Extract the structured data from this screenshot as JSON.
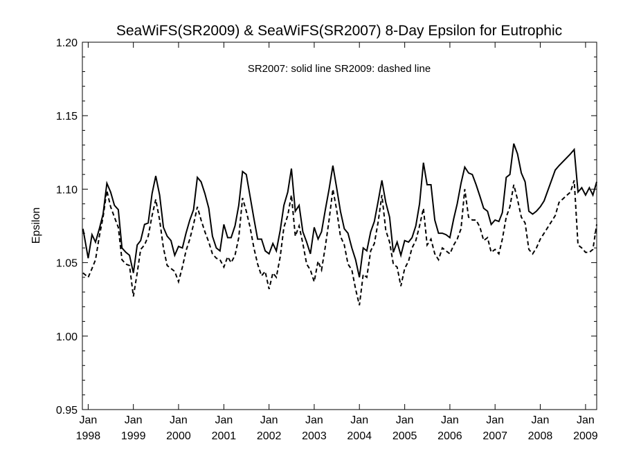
{
  "chart_data": {
    "type": "line",
    "title": "SeaWiFS(SR2009) & SeaWiFS(SR2007) 8-Day Epsilon for Eutrophic",
    "xlabel": "",
    "ylabel": "Epsilon",
    "annotation": "SR2007: solid line   SR2009: dashed line",
    "xlim": [
      "1997-11-15",
      "2009-04-01"
    ],
    "ylim": [
      0.95,
      1.2
    ],
    "grid": false,
    "y_ticks": [
      0.95,
      1.0,
      1.05,
      1.1,
      1.15,
      1.2
    ],
    "y_tick_labels": [
      "0.95",
      "1.00",
      "1.05",
      "1.10",
      "1.15",
      "1.20"
    ],
    "x_ticks": [
      "1998-01-01",
      "1999-01-01",
      "2000-01-01",
      "2001-01-01",
      "2002-01-01",
      "2003-01-01",
      "2004-01-01",
      "2005-01-01",
      "2006-01-01",
      "2007-01-01",
      "2008-01-01",
      "2009-01-01"
    ],
    "x_tick_month_label": "Jan",
    "x_tick_year_labels": [
      "1998",
      "1999",
      "2000",
      "2001",
      "2002",
      "2003",
      "2004",
      "2005",
      "2006",
      "2007",
      "2008",
      "2009"
    ],
    "series": [
      {
        "style": "solid",
        "x": [
          "1997-11-20",
          "1998-01-01",
          "1998-02-01",
          "1998-03-01",
          "1998-04-01",
          "1998-05-01",
          "1998-06-01",
          "1998-07-01",
          "1998-08-01",
          "1998-09-01",
          "1998-10-01",
          "1998-11-01",
          "1998-12-01",
          "1999-01-01",
          "1999-02-01",
          "1999-03-01",
          "1999-04-01",
          "1999-05-01",
          "1999-06-01",
          "1999-07-01",
          "1999-08-01",
          "1999-09-01",
          "1999-10-01",
          "1999-11-01",
          "1999-12-01",
          "2000-01-01",
          "2000-02-01",
          "2000-03-01",
          "2000-04-01",
          "2000-05-01",
          "2000-06-01",
          "2000-07-01",
          "2000-08-01",
          "2000-09-01",
          "2000-10-01",
          "2000-11-01",
          "2000-12-01",
          "2001-01-01",
          "2001-02-01",
          "2001-03-01",
          "2001-04-01",
          "2001-05-01",
          "2001-06-01",
          "2001-07-01",
          "2001-08-01",
          "2001-09-01",
          "2001-10-01",
          "2001-11-01",
          "2001-12-01",
          "2002-01-01",
          "2002-02-01",
          "2002-03-01",
          "2002-04-01",
          "2002-05-01",
          "2002-06-01",
          "2002-07-01",
          "2002-08-01",
          "2002-09-01",
          "2002-10-01",
          "2002-11-01",
          "2002-12-01",
          "2003-01-01",
          "2003-02-01",
          "2003-03-01",
          "2003-04-01",
          "2003-05-01",
          "2003-06-01",
          "2003-07-01",
          "2003-08-01",
          "2003-09-01",
          "2003-10-01",
          "2003-11-01",
          "2003-12-01",
          "2004-01-01",
          "2004-02-01",
          "2004-03-01",
          "2004-04-01",
          "2004-05-01",
          "2004-06-01",
          "2004-07-01",
          "2004-08-01",
          "2004-09-01",
          "2004-10-01",
          "2004-11-01",
          "2004-12-01",
          "2005-01-01",
          "2005-02-01",
          "2005-03-01",
          "2005-04-01",
          "2005-05-01",
          "2005-06-01",
          "2005-07-01",
          "2005-08-01",
          "2005-09-01",
          "2005-10-01",
          "2005-11-01",
          "2005-12-01",
          "2006-01-01",
          "2006-02-01",
          "2006-03-01",
          "2006-04-01",
          "2006-05-01",
          "2006-06-01",
          "2006-07-01",
          "2006-08-01",
          "2006-09-01",
          "2006-10-01",
          "2006-11-01",
          "2006-12-01",
          "2007-01-01",
          "2007-02-01",
          "2007-03-01",
          "2007-04-01",
          "2007-05-01",
          "2007-06-01",
          "2007-07-01",
          "2007-08-01",
          "2007-09-01",
          "2007-10-01",
          "2007-11-01",
          "2007-12-01",
          "2008-01-01",
          "2008-02-01",
          "2008-05-01",
          "2008-06-01",
          "2008-09-01",
          "2008-10-01",
          "2008-11-01",
          "2008-12-01",
          "2009-01-01",
          "2009-02-01",
          "2009-03-01",
          "2009-04-01"
        ],
        "y": [
          1.073,
          1.053,
          1.069,
          1.064,
          1.073,
          1.083,
          1.104,
          1.098,
          1.089,
          1.086,
          1.06,
          1.057,
          1.055,
          1.043,
          1.062,
          1.065,
          1.076,
          1.077,
          1.097,
          1.109,
          1.096,
          1.074,
          1.068,
          1.065,
          1.055,
          1.061,
          1.06,
          1.07,
          1.079,
          1.086,
          1.108,
          1.105,
          1.097,
          1.087,
          1.068,
          1.06,
          1.058,
          1.076,
          1.067,
          1.067,
          1.075,
          1.089,
          1.112,
          1.11,
          1.095,
          1.08,
          1.066,
          1.066,
          1.058,
          1.056,
          1.063,
          1.058,
          1.072,
          1.089,
          1.098,
          1.114,
          1.085,
          1.089,
          1.071,
          1.064,
          1.056,
          1.074,
          1.066,
          1.071,
          1.086,
          1.1,
          1.116,
          1.101,
          1.085,
          1.073,
          1.07,
          1.06,
          1.052,
          1.04,
          1.06,
          1.058,
          1.071,
          1.078,
          1.092,
          1.106,
          1.091,
          1.081,
          1.057,
          1.064,
          1.055,
          1.065,
          1.064,
          1.067,
          1.075,
          1.09,
          1.118,
          1.103,
          1.103,
          1.079,
          1.07,
          1.07,
          1.069,
          1.067,
          1.08,
          1.09,
          1.104,
          1.115,
          1.111,
          1.11,
          1.103,
          1.095,
          1.087,
          1.085,
          1.076,
          1.079,
          1.078,
          1.084,
          1.108,
          1.11,
          1.131,
          1.124,
          1.111,
          1.105,
          1.085,
          1.083,
          1.085,
          1.088,
          1.092,
          1.113,
          1.116,
          1.124,
          1.127,
          1.098,
          1.101,
          1.096,
          1.101,
          1.096,
          1.105
        ]
      },
      {
        "style": "dashed",
        "x": [
          "1997-11-20",
          "1998-01-01",
          "1998-02-01",
          "1998-03-01",
          "1998-04-01",
          "1998-05-01",
          "1998-06-01",
          "1998-07-01",
          "1998-08-01",
          "1998-09-01",
          "1998-10-01",
          "1998-11-01",
          "1998-12-01",
          "1999-01-01",
          "1999-02-01",
          "1999-03-01",
          "1999-04-01",
          "1999-05-01",
          "1999-06-01",
          "1999-07-01",
          "1999-08-01",
          "1999-09-01",
          "1999-10-01",
          "1999-11-01",
          "1999-12-01",
          "2000-01-01",
          "2000-02-01",
          "2000-03-01",
          "2000-04-01",
          "2000-05-01",
          "2000-06-01",
          "2000-07-01",
          "2000-08-01",
          "2000-09-01",
          "2000-10-01",
          "2000-11-01",
          "2000-12-01",
          "2001-01-01",
          "2001-02-01",
          "2001-03-01",
          "2001-04-01",
          "2001-05-01",
          "2001-06-01",
          "2001-07-01",
          "2001-08-01",
          "2001-09-01",
          "2001-10-01",
          "2001-11-01",
          "2001-12-01",
          "2002-01-01",
          "2002-02-01",
          "2002-03-01",
          "2002-04-01",
          "2002-05-01",
          "2002-06-01",
          "2002-07-01",
          "2002-08-01",
          "2002-09-01",
          "2002-10-01",
          "2002-11-01",
          "2002-12-01",
          "2003-01-01",
          "2003-02-01",
          "2003-03-01",
          "2003-04-01",
          "2003-05-01",
          "2003-06-01",
          "2003-07-01",
          "2003-08-01",
          "2003-09-01",
          "2003-10-01",
          "2003-11-01",
          "2003-12-01",
          "2004-01-01",
          "2004-02-01",
          "2004-03-01",
          "2004-04-01",
          "2004-05-01",
          "2004-06-01",
          "2004-07-01",
          "2004-08-01",
          "2004-09-01",
          "2004-10-01",
          "2004-11-01",
          "2004-12-01",
          "2005-01-01",
          "2005-02-01",
          "2005-03-01",
          "2005-04-01",
          "2005-05-01",
          "2005-06-01",
          "2005-07-01",
          "2005-08-01",
          "2005-09-01",
          "2005-10-01",
          "2005-11-01",
          "2005-12-01",
          "2006-01-01",
          "2006-02-01",
          "2006-03-01",
          "2006-04-01",
          "2006-05-01",
          "2006-06-01",
          "2006-07-01",
          "2006-08-01",
          "2006-09-01",
          "2006-10-01",
          "2006-11-01",
          "2006-12-01",
          "2007-01-01",
          "2007-02-01",
          "2007-03-01",
          "2007-04-01",
          "2007-05-01",
          "2007-06-01",
          "2007-07-01",
          "2007-08-01",
          "2007-09-01",
          "2007-10-01",
          "2007-11-01",
          "2007-12-01",
          "2008-01-01",
          "2008-02-01",
          "2008-05-01",
          "2008-06-01",
          "2008-09-01",
          "2008-10-01",
          "2008-11-01",
          "2008-12-01",
          "2009-01-01",
          "2009-02-01",
          "2009-03-01",
          "2009-04-01"
        ],
        "y": [
          1.043,
          1.04,
          1.046,
          1.052,
          1.068,
          1.081,
          1.099,
          1.088,
          1.081,
          1.074,
          1.052,
          1.049,
          1.048,
          1.027,
          1.043,
          1.059,
          1.062,
          1.068,
          1.082,
          1.093,
          1.079,
          1.06,
          1.048,
          1.046,
          1.044,
          1.037,
          1.047,
          1.058,
          1.066,
          1.076,
          1.088,
          1.079,
          1.071,
          1.064,
          1.056,
          1.053,
          1.052,
          1.047,
          1.054,
          1.05,
          1.055,
          1.067,
          1.094,
          1.085,
          1.074,
          1.06,
          1.049,
          1.041,
          1.044,
          1.032,
          1.043,
          1.04,
          1.054,
          1.074,
          1.082,
          1.096,
          1.068,
          1.075,
          1.063,
          1.049,
          1.045,
          1.037,
          1.051,
          1.045,
          1.061,
          1.079,
          1.1,
          1.086,
          1.068,
          1.062,
          1.049,
          1.045,
          1.032,
          1.021,
          1.042,
          1.04,
          1.058,
          1.063,
          1.078,
          1.096,
          1.072,
          1.064,
          1.049,
          1.047,
          1.034,
          1.046,
          1.051,
          1.06,
          1.065,
          1.075,
          1.087,
          1.062,
          1.066,
          1.056,
          1.052,
          1.06,
          1.058,
          1.056,
          1.062,
          1.066,
          1.073,
          1.1,
          1.081,
          1.079,
          1.079,
          1.074,
          1.065,
          1.067,
          1.057,
          1.059,
          1.056,
          1.066,
          1.081,
          1.088,
          1.103,
          1.093,
          1.081,
          1.077,
          1.059,
          1.056,
          1.06,
          1.066,
          1.07,
          1.082,
          1.091,
          1.098,
          1.106,
          1.062,
          1.06,
          1.057,
          1.057,
          1.059,
          1.076
        ]
      }
    ]
  }
}
